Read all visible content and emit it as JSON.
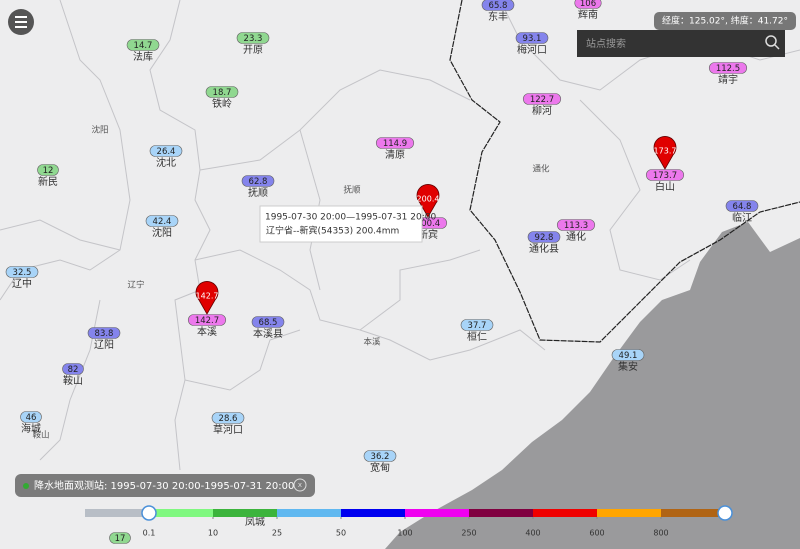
{
  "header": {
    "coordinates": "经度：125.02°, 纬度：41.72°",
    "search_placeholder": "站点搜索"
  },
  "stations": [
    {
      "value": 65.8,
      "name": "东丰"
    },
    {
      "value": 106,
      "name": "辉南"
    },
    {
      "value": 14.7,
      "name": "法库"
    },
    {
      "value": 23.3,
      "name": "开原"
    },
    {
      "value": 93.1,
      "name": "梅河口"
    },
    {
      "value": 112.5,
      "name": "靖宇"
    },
    {
      "value": 18.7,
      "name": "铁岭"
    },
    {
      "value": 122.7,
      "name": "柳河"
    },
    {
      "value": 114.9,
      "name": "清原"
    },
    {
      "value": 26.4,
      "name": "沈北"
    },
    {
      "value": 173.7,
      "name": "白山",
      "pin": true
    },
    {
      "value": 12,
      "name": "新民"
    },
    {
      "value": 62.8,
      "name": "抚顺"
    },
    {
      "value": 64.8,
      "name": "临江"
    },
    {
      "value": 42.4,
      "name": "沈阳"
    },
    {
      "value": 200.4,
      "name": "新宾",
      "pin": true
    },
    {
      "value": 113.3,
      "name": "通化"
    },
    {
      "value": 92.8,
      "name": "通化县"
    },
    {
      "value": 32.5,
      "name": "辽中"
    },
    {
      "value": 142.7,
      "name": "本溪",
      "pin": true
    },
    {
      "value": 68.5,
      "name": "本溪县"
    },
    {
      "value": 37.7,
      "name": "桓仁"
    },
    {
      "value": 83.8,
      "name": "辽阳"
    },
    {
      "value": 49.1,
      "name": "集安"
    },
    {
      "value": 82,
      "name": "鞍山"
    },
    {
      "value": 46,
      "name": "海城"
    },
    {
      "value": 28.6,
      "name": "草河口"
    },
    {
      "value": 36.2,
      "name": "宽甸"
    },
    {
      "value": 17
    },
    {
      "name": "凤城"
    }
  ],
  "regions": [
    "沈阳",
    "抚顺",
    "通化",
    "辽宁",
    "本溪",
    "鞍山"
  ],
  "tooltip": {
    "period": "1995-07-30 20:00—1995-07-31 20:00",
    "detail": "辽宁省--新宾(54353) 200.4mm"
  },
  "footer": {
    "label": "降水地面观测站: 1995-07-30 20:00-1995-07-31 20:00"
  },
  "legend": {
    "thresholds": [
      0.1,
      10,
      25,
      50,
      100,
      250,
      400,
      600,
      800
    ],
    "colors": [
      "#b8bec6",
      "#80f880",
      "#3cb43c",
      "#60b8f0",
      "#0000f0",
      "#f000f0",
      "#800040",
      "#f00000",
      "#ffa500",
      "#b06414"
    ],
    "marker_colors": [
      "#c8ccd2",
      "#a8f0a8",
      "#90d890",
      "#a8d4f8",
      "#8484ec",
      "#ec78ec",
      "#c06080",
      "#f06060",
      "#f8c060",
      "#c89060"
    ]
  }
}
